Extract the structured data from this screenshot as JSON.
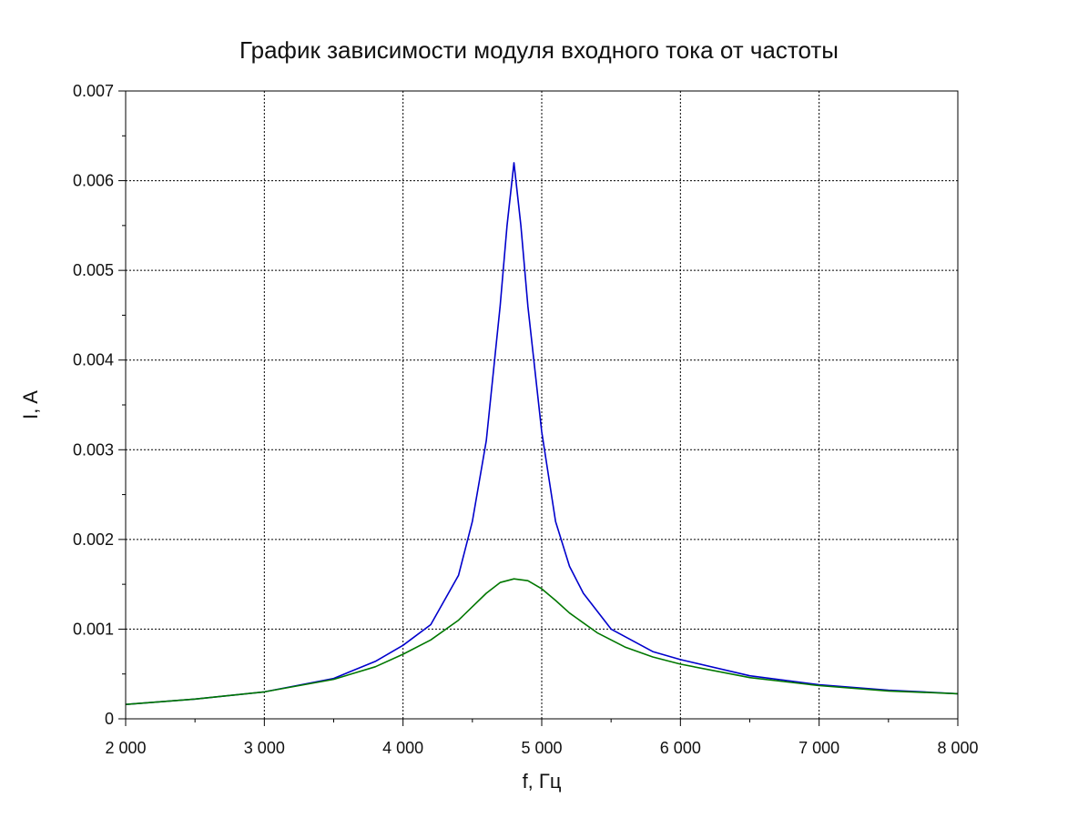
{
  "chart_data": {
    "type": "line",
    "title": "График зависимости модуля входного тока от частоты",
    "xlabel": "f, Гц",
    "ylabel": "I, A",
    "xlim": [
      2000,
      8000
    ],
    "ylim": [
      0,
      0.007
    ],
    "x_ticks": [
      2000,
      3000,
      4000,
      5000,
      6000,
      7000,
      8000
    ],
    "x_tick_labels": [
      "2 000",
      "3 000",
      "4 000",
      "5 000",
      "6 000",
      "7 000",
      "8 000"
    ],
    "y_ticks": [
      0,
      0.001,
      0.002,
      0.003,
      0.004,
      0.005,
      0.006,
      0.007
    ],
    "y_tick_labels": [
      "0",
      "0.001",
      "0.002",
      "0.003",
      "0.004",
      "0.005",
      "0.006",
      "0.007"
    ],
    "grid": true,
    "series": [
      {
        "color": "#0000cc",
        "x": [
          2000,
          2500,
          3000,
          3500,
          3800,
          4000,
          4200,
          4400,
          4500,
          4600,
          4700,
          4750,
          4800,
          4850,
          4900,
          5000,
          5100,
          5200,
          5300,
          5500,
          5800,
          6000,
          6500,
          7000,
          7500,
          8000
        ],
        "y": [
          0.00016,
          0.00022,
          0.0003,
          0.00045,
          0.00064,
          0.00082,
          0.00105,
          0.0016,
          0.0022,
          0.0031,
          0.0046,
          0.0055,
          0.0062,
          0.0055,
          0.0046,
          0.0032,
          0.0022,
          0.0017,
          0.0014,
          0.001,
          0.00075,
          0.00066,
          0.00048,
          0.00038,
          0.00032,
          0.00028
        ]
      },
      {
        "color": "#007700",
        "x": [
          2000,
          2500,
          3000,
          3500,
          3800,
          4000,
          4200,
          4400,
          4500,
          4600,
          4700,
          4800,
          4900,
          5000,
          5100,
          5200,
          5400,
          5600,
          5800,
          6000,
          6500,
          7000,
          7500,
          8000
        ],
        "y": [
          0.00016,
          0.00022,
          0.0003,
          0.00044,
          0.00058,
          0.00072,
          0.00088,
          0.0011,
          0.00125,
          0.0014,
          0.00152,
          0.00156,
          0.00154,
          0.00145,
          0.00132,
          0.00118,
          0.00096,
          0.0008,
          0.00069,
          0.00061,
          0.00046,
          0.00037,
          0.00031,
          0.00028
        ]
      }
    ]
  }
}
